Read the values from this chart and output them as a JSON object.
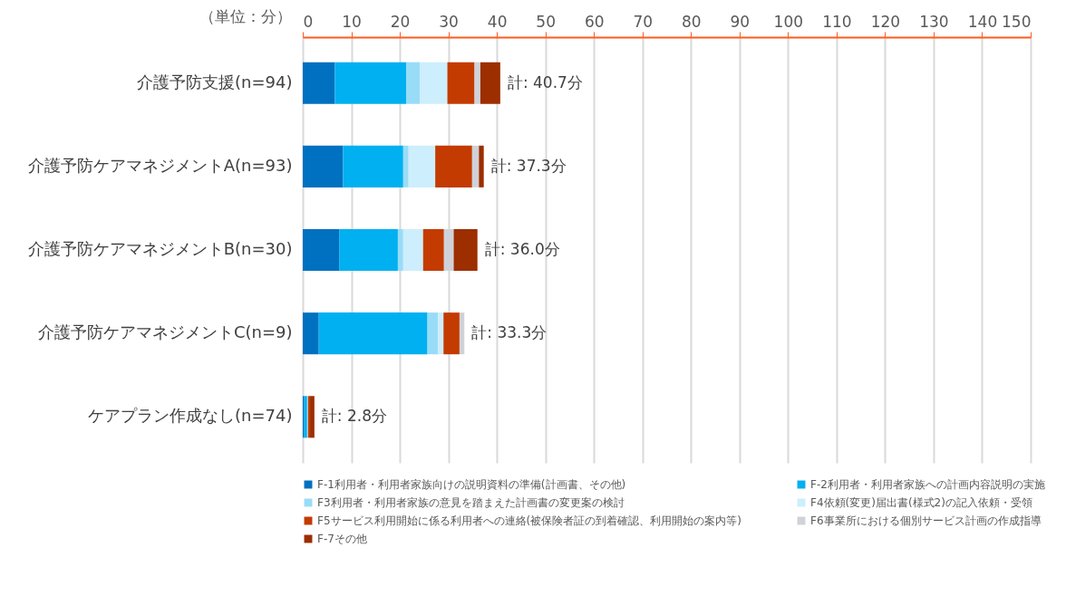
{
  "chart_data": {
    "type": "bar",
    "orientation": "horizontal",
    "stacked": true,
    "categories": [
      "介護予防支援(n=94)",
      "介護予防ケアマネジメントA(n=93)",
      "介護予防ケアマネジメントB(n=30)",
      "介護予防ケアマネジメントC(n=9)",
      "ケアプラン作成なし(n=74)"
    ],
    "series": [
      {
        "name": "F-1利用者・利用者家族向けの説明資料の準備(計画書、その他)",
        "color": "#0070c0",
        "values": [
          6.6,
          8.3,
          7.5,
          3.3,
          0.3
        ]
      },
      {
        "name": "F-2利用者・利用者家族への計画内容説明の実施",
        "color": "#00b0f0",
        "values": [
          14.7,
          12.4,
          12.1,
          22.4,
          0.6
        ]
      },
      {
        "name": "F3利用者・利用者家族の意見を踏まえた計画書の変更案の検討",
        "color": "#99dcf8",
        "values": [
          2.8,
          1.1,
          1.1,
          2.2,
          0.2
        ]
      },
      {
        "name": "F4依頼(変更)届出書(様式2)の記入依頼・受領",
        "color": "#cdeefc",
        "values": [
          5.7,
          5.5,
          4.1,
          1.1,
          null
        ]
      },
      {
        "name": "F5サービス利用開始に係る利用者への連絡(被保険者証の到着確認、利用開始の案内等)",
        "color": "#c33b00",
        "values": [
          5.6,
          7.6,
          4.3,
          3.3,
          0.4
        ]
      },
      {
        "name": "F6事業所における個別サービス計画の作成指導",
        "color": "#cfd2d8",
        "values": [
          1.2,
          1.4,
          2.0,
          1.0,
          null
        ]
      },
      {
        "name": "F-7その他",
        "color": "#9c2e00",
        "values": [
          4.1,
          1.0,
          4.9,
          0.0,
          0.9
        ]
      }
    ],
    "totals": [
      "計: 40.7分",
      "計: 37.3分",
      "計: 36.0分",
      "計: 33.3分",
      "計: 2.8分"
    ],
    "xlim": [
      0,
      150
    ],
    "xticks": [
      0,
      10,
      20,
      30,
      40,
      50,
      60,
      70,
      80,
      90,
      100,
      110,
      120,
      130,
      140,
      150
    ],
    "grid": "x",
    "legend": "bottom",
    "annotations": [
      "（単位：分）"
    ]
  }
}
